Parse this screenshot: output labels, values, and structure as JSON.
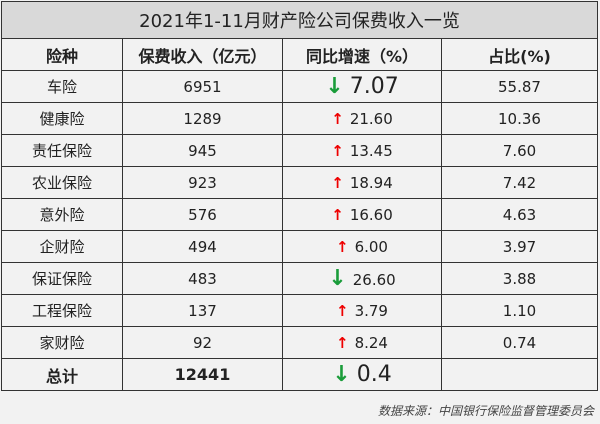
{
  "title": "2021年1-11月财产险公司保费收入一览",
  "headers": [
    "险种",
    "保费收入（亿元）",
    "同比增速（%）",
    "占比(%)"
  ],
  "rows": [
    {
      "type": "车险",
      "premium": "6951",
      "growth": "7.07",
      "dir": "down",
      "share": "55.87"
    },
    {
      "type": "健康险",
      "premium": "1289",
      "growth": "21.60",
      "dir": "up",
      "share": "10.36"
    },
    {
      "type": "责任保险",
      "premium": "945",
      "growth": "13.45",
      "dir": "up",
      "share": "7.60"
    },
    {
      "type": "农业保险",
      "premium": "923",
      "growth": "18.94",
      "dir": "up",
      "share": "7.42"
    },
    {
      "type": "意外险",
      "premium": "576",
      "growth": "16.60",
      "dir": "up",
      "share": "4.63"
    },
    {
      "type": "企财险",
      "premium": "494",
      "growth": "6.00",
      "dir": "up",
      "share": "3.97"
    },
    {
      "type": "保证保险",
      "premium": "483",
      "growth": "26.60",
      "dir": "down",
      "share": "3.88"
    },
    {
      "type": "工程保险",
      "premium": "137",
      "growth": "3.79",
      "dir": "up",
      "share": "1.10"
    },
    {
      "type": "家财险",
      "premium": "92",
      "growth": "8.24",
      "dir": "up",
      "share": "0.74"
    }
  ],
  "total": {
    "label": "总计",
    "premium": "12441",
    "growth": "0.4",
    "dir": "down",
    "share": ""
  },
  "source": "数据来源：中国银行保险监督管理委员会",
  "colors": {
    "up": "#e00000",
    "down": "#1a9c3a",
    "title_bg": "#d9d9d9",
    "bg": "#f2f2f2"
  }
}
